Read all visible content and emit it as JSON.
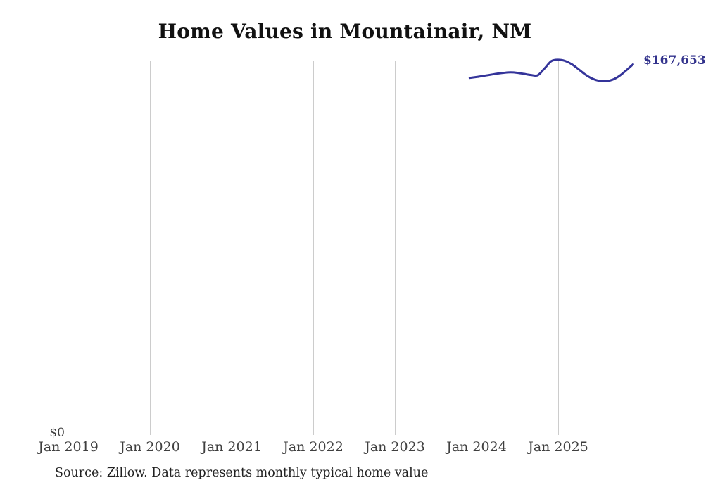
{
  "header": {
    "title": "Home Values in Mountainair, NM"
  },
  "chart": {
    "y_axis_zero_label": "$0",
    "end_value_label": "$167,653",
    "x_ticks": [
      "Jan 2019",
      "Jan 2020",
      "Jan 2021",
      "Jan 2022",
      "Jan 2023",
      "Jan 2024",
      "Jan 2025"
    ],
    "colors": {
      "background": "#ffffff",
      "title": "#111111",
      "line": "#34349a",
      "end_label": "#32328c",
      "grid": "#cccccc",
      "axis": "#3f3f3f",
      "source": "#222222"
    }
  },
  "footer": {
    "source_note": "Source: Zillow. Data represents monthly typical home value"
  },
  "chart_data": {
    "type": "line",
    "title": "Home Values in Mountainair, NM",
    "xlabel": "",
    "ylabel": "",
    "x_tick_labels": [
      "Jan 2019",
      "Jan 2020",
      "Jan 2021",
      "Jan 2022",
      "Jan 2023",
      "Jan 2024",
      "Jan 2025"
    ],
    "xlim": [
      "2019-01",
      "2026-01"
    ],
    "ylim": [
      0,
      170000
    ],
    "grid": "vertical-year-lines",
    "legend": "none",
    "end_label": "$167,653",
    "series": [
      {
        "name": "Monthly typical home value",
        "x": [
          "2023-12",
          "2024-01",
          "2024-02",
          "2024-03",
          "2024-04",
          "2024-05",
          "2024-06",
          "2024-07",
          "2024-08",
          "2024-09",
          "2024-10",
          "2024-11",
          "2024-12",
          "2025-01",
          "2025-02",
          "2025-03",
          "2025-04",
          "2025-05",
          "2025-06",
          "2025-07",
          "2025-08",
          "2025-09",
          "2025-10",
          "2025-11",
          "2025-12"
        ],
        "values": [
          161500,
          161900,
          162400,
          162900,
          163400,
          163800,
          164000,
          163800,
          163300,
          162800,
          162700,
          165800,
          169100,
          169700,
          169200,
          167700,
          165400,
          163000,
          161200,
          160200,
          160000,
          160700,
          162400,
          164900,
          167653
        ]
      }
    ]
  }
}
